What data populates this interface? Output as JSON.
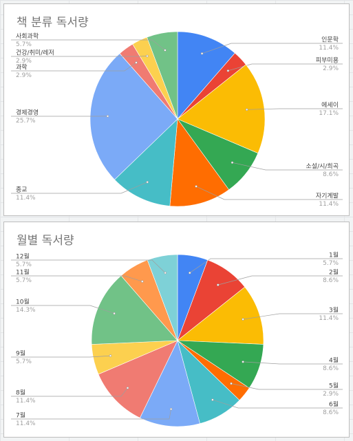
{
  "chart_data": [
    {
      "type": "pie",
      "title": "책 분류 독서량",
      "slices": [
        {
          "label": "인문학",
          "pct": "11.4%",
          "value": 11.4,
          "color": "#4285f4"
        },
        {
          "label": "피부미용",
          "pct": "2.9%",
          "value": 2.9,
          "color": "#ea4335"
        },
        {
          "label": "에세이",
          "pct": "17.1%",
          "value": 17.1,
          "color": "#fbbc04"
        },
        {
          "label": "소설/시/희곡",
          "pct": "8.6%",
          "value": 8.6,
          "color": "#34a853"
        },
        {
          "label": "자기계발",
          "pct": "11.4%",
          "value": 11.4,
          "color": "#ff6d01"
        },
        {
          "label": "종교",
          "pct": "11.4%",
          "value": 11.4,
          "color": "#46bdc6"
        },
        {
          "label": "경제경영",
          "pct": "25.7%",
          "value": 25.7,
          "color": "#7baaf7"
        },
        {
          "label": "과학",
          "pct": "2.9%",
          "value": 2.9,
          "color": "#f07b72"
        },
        {
          "label": "건강/취미/레저",
          "pct": "2.9%",
          "value": 2.9,
          "color": "#fcd04f"
        },
        {
          "label": "사회과학",
          "pct": "5.7%",
          "value": 5.7,
          "color": "#71c287"
        }
      ]
    },
    {
      "type": "pie",
      "title": "월별 독서량",
      "slices": [
        {
          "label": "1월",
          "pct": "5.7%",
          "value": 5.7,
          "color": "#4285f4"
        },
        {
          "label": "2월",
          "pct": "8.6%",
          "value": 8.6,
          "color": "#ea4335"
        },
        {
          "label": "3월",
          "pct": "11.4%",
          "value": 11.4,
          "color": "#fbbc04"
        },
        {
          "label": "4월",
          "pct": "8.6%",
          "value": 8.6,
          "color": "#34a853"
        },
        {
          "label": "5월",
          "pct": "2.9%",
          "value": 2.9,
          "color": "#ff6d01"
        },
        {
          "label": "6월",
          "pct": "8.6%",
          "value": 8.6,
          "color": "#46bdc6"
        },
        {
          "label": "7월",
          "pct": "11.4%",
          "value": 11.4,
          "color": "#7baaf7"
        },
        {
          "label": "8월",
          "pct": "11.4%",
          "value": 11.4,
          "color": "#f07b72"
        },
        {
          "label": "9월",
          "pct": "5.7%",
          "value": 5.7,
          "color": "#fcd04f"
        },
        {
          "label": "10월",
          "pct": "14.3%",
          "value": 14.3,
          "color": "#71c287"
        },
        {
          "label": "11월",
          "pct": "5.7%",
          "value": 5.7,
          "color": "#ff994d"
        },
        {
          "label": "12월",
          "pct": "5.7%",
          "value": 5.7,
          "color": "#7ed1d7"
        }
      ]
    }
  ]
}
